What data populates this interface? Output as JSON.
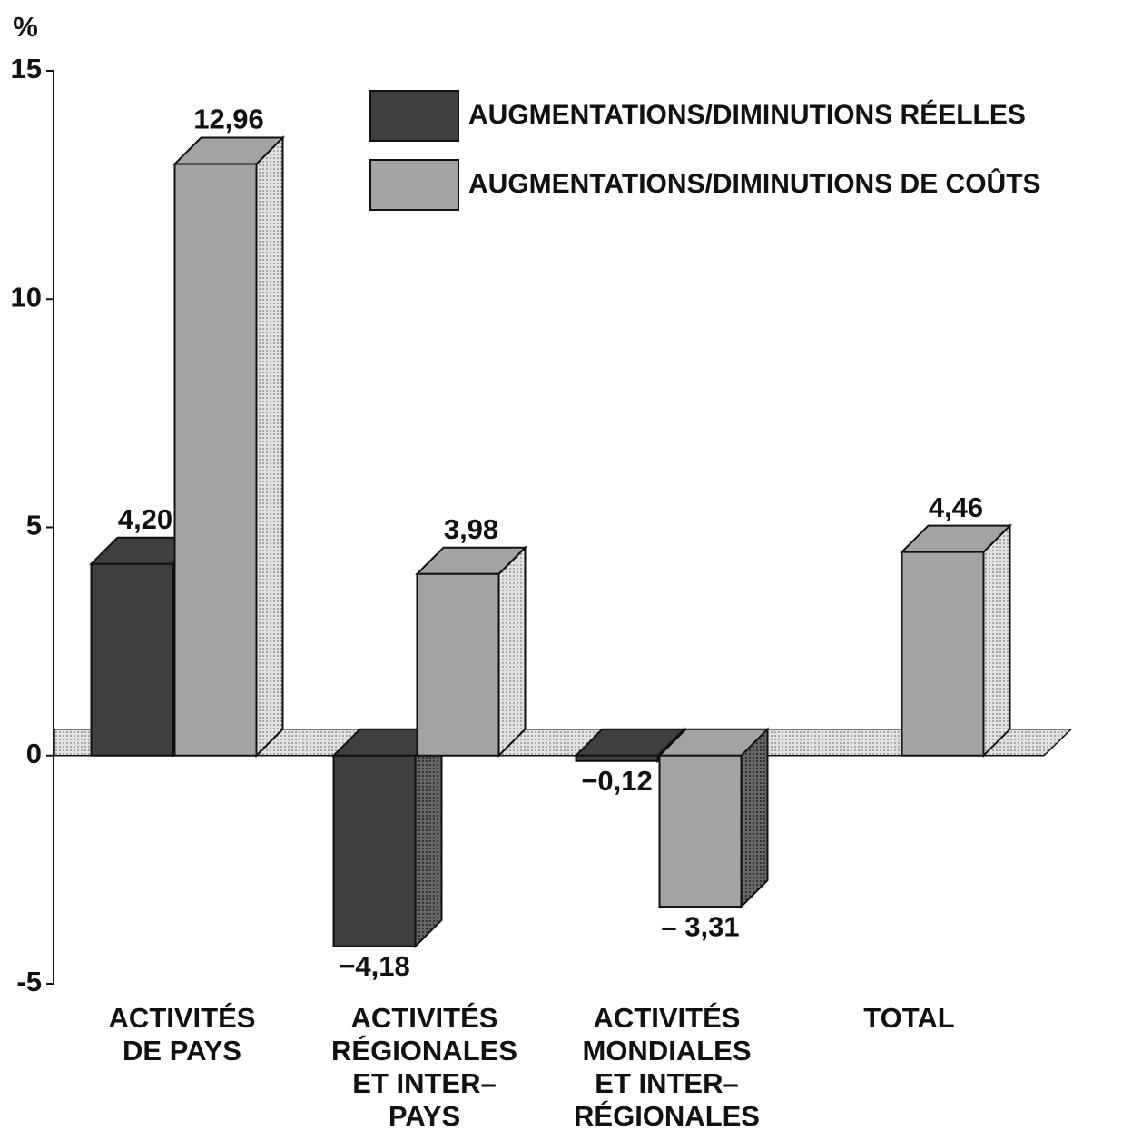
{
  "chart_data": {
    "type": "bar3d",
    "ylabel": "%",
    "categories": [
      "ACTIVITÉS\nDE PAYS",
      "ACTIVITÉS\nRÉGIONALES\nET INTER–\nPAYS",
      "ACTIVITÉS\nMONDIALES\nET INTER–\nRÉGIONALES",
      "TOTAL"
    ],
    "series": [
      {
        "name": "AUGMENTATIONS/DIMINUTIONS RÉELLES",
        "color": "#3f3f3f",
        "values": [
          4.2,
          -4.18,
          -0.12,
          null
        ],
        "value_labels": [
          "4,20",
          "−4,18",
          "−0,12",
          null
        ]
      },
      {
        "name": "AUGMENTATIONS/DIMINUTIONS DE COÛTS",
        "color": "#a3a3a3",
        "values": [
          12.96,
          3.98,
          -3.31,
          4.46
        ],
        "value_labels": [
          "12,96",
          "3,98",
          "– 3,31",
          "4,46"
        ]
      }
    ],
    "ylim": [
      -5,
      15
    ],
    "yticks": [
      -5,
      0,
      5,
      10,
      15
    ],
    "grid": false,
    "legend": "top-right"
  }
}
